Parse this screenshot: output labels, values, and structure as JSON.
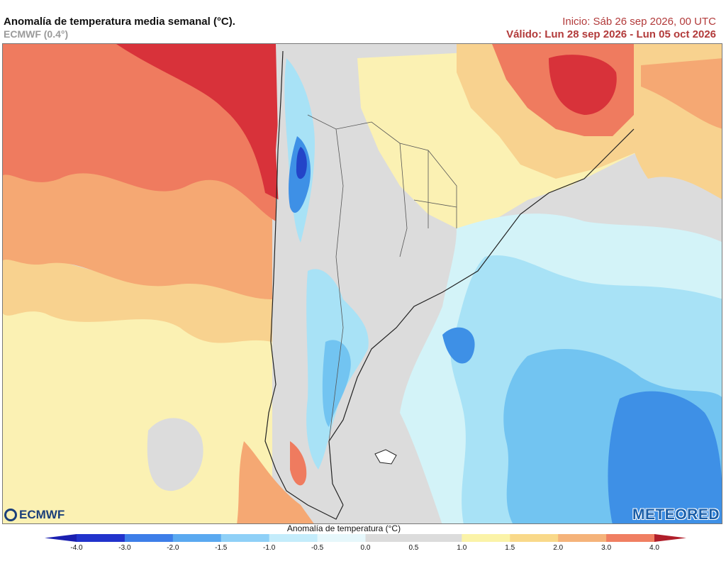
{
  "header": {
    "title": "Anomalía de temperatura media semanal (°C).",
    "model": "ECMWF (0.4°)",
    "init": "Inicio: Sáb 26 sep 2026, 00 UTC",
    "valid": "Válido: Lun 28 sep 2026 - Lun 05 oct 2026"
  },
  "logos": {
    "left": "ECMWF",
    "right": "METEORED"
  },
  "colorbar": {
    "title": "Anomalía de temperatura (°C)",
    "ticks": [
      "-4.0",
      "-3.0",
      "-2.0",
      "-1.5",
      "-1.0",
      "-0.5",
      "0.0",
      "0.5",
      "1.0",
      "1.5",
      "2.0",
      "3.0",
      "4.0"
    ],
    "colors": [
      "#2233cc",
      "#3d7ee8",
      "#5aa9f0",
      "#8fd0f7",
      "#c4ecfb",
      "#e6f7fb",
      "#dcdcdc",
      "#dcdcdc",
      "#fbf3a8",
      "#f9d98a",
      "#f5b37a",
      "#f07f62",
      "#dc3a3a"
    ],
    "under_color": "#1a1fb0",
    "over_color": "#b01e2a"
  },
  "map_colors": {
    "strong_warm": "#d8323a",
    "warm": "#ef7b5f",
    "mild_warm": "#f5a873",
    "slight_warm": "#f8d28f",
    "near_zero_warm": "#fbf1b3",
    "neutral": "#dcdcdc",
    "slight_cool": "#d3f3f8",
    "cool": "#a8e2f6",
    "mild_cool": "#72c4f1",
    "strong_cool": "#3e90e6",
    "very_cool": "#2344c8"
  }
}
